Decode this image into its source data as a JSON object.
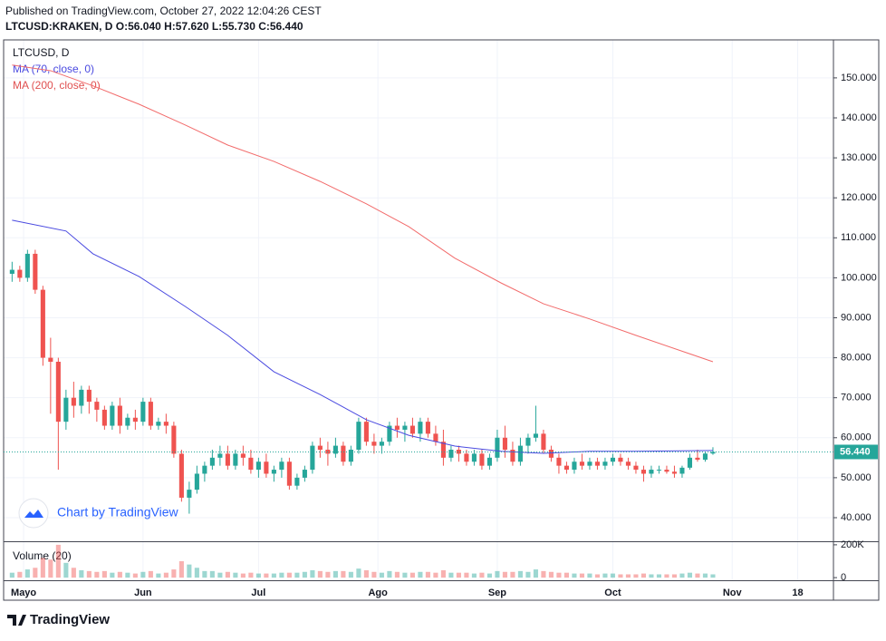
{
  "chart_data": {
    "type": "candlestick",
    "title": "Published on TradingView.com, October 27, 2022 12:04:26 CEST",
    "header": "LTCUSD:KRAKEN, D O:56.040 H:57.620 L:55.730 C:56.440",
    "legend": [
      "LTCUSD, D",
      "MA (70, close, 0)",
      "MA (200, close, 0)"
    ],
    "volume_label": "Volume (20)",
    "watermark": "Chart by TradingView",
    "footer": "TradingView",
    "up_color": "#26a69a",
    "down_color": "#ef5350",
    "xlim": [
      -5.2,
      210.3
    ],
    "xticks": [
      {
        "value": 0,
        "label": "Mayo"
      },
      {
        "value": 31,
        "label": "Jun"
      },
      {
        "value": 61,
        "label": "Jul"
      },
      {
        "value": 92,
        "label": "Ago"
      },
      {
        "value": 123,
        "label": "Sep"
      },
      {
        "value": 153,
        "label": "Oct"
      },
      {
        "value": 184,
        "label": "Nov"
      },
      {
        "value": 201,
        "label": "18"
      }
    ],
    "ylim": [
      34.1,
      159.5
    ],
    "yticks": [
      {
        "value": 40,
        "label": "40.000"
      },
      {
        "value": 50,
        "label": "50.000"
      },
      {
        "value": 60,
        "label": "60.000"
      },
      {
        "value": 70,
        "label": "70.000"
      },
      {
        "value": 80,
        "label": "80.000"
      },
      {
        "value": 90,
        "label": "90.000"
      },
      {
        "value": 100,
        "label": "100.000"
      },
      {
        "value": 110,
        "label": "110.000"
      },
      {
        "value": 120,
        "label": "120.000"
      },
      {
        "value": 130,
        "label": "130.000"
      },
      {
        "value": 140,
        "label": "140.000"
      },
      {
        "value": 150,
        "label": "150.000"
      }
    ],
    "vlim": [
      -16000,
      216000
    ],
    "vticks": [
      {
        "value": 0,
        "label": "0"
      },
      {
        "value": 200000,
        "label": "200K"
      }
    ],
    "last_price": {
      "value": 56.44,
      "label": "56.440"
    },
    "candles": [
      [
        -3,
        101,
        104,
        99,
        102,
        30000
      ],
      [
        -1,
        102,
        103,
        99,
        100,
        35000
      ],
      [
        1,
        100,
        107,
        99,
        106,
        50000
      ],
      [
        3,
        106,
        107,
        96,
        97,
        60000
      ],
      [
        5,
        97,
        98,
        78,
        80,
        120000
      ],
      [
        7,
        80,
        85,
        66,
        79,
        110000
      ],
      [
        9,
        79,
        80,
        52,
        64,
        200000
      ],
      [
        11,
        64,
        72,
        62,
        70,
        90000
      ],
      [
        13,
        70,
        74,
        65,
        68,
        60000
      ],
      [
        15,
        68,
        73,
        66,
        72,
        45000
      ],
      [
        17,
        72,
        73,
        66,
        69,
        40000
      ],
      [
        19,
        69,
        70,
        64,
        67,
        35000
      ],
      [
        21,
        67,
        68,
        62,
        63,
        40000
      ],
      [
        23,
        63,
        69,
        62,
        68,
        30000
      ],
      [
        25,
        68,
        70,
        61,
        63,
        35000
      ],
      [
        27,
        63,
        66,
        62,
        65,
        30000
      ],
      [
        29,
        65,
        67,
        62,
        64,
        25000
      ],
      [
        31,
        64,
        70,
        63,
        69,
        35000
      ],
      [
        33,
        69,
        70,
        62,
        63,
        40000
      ],
      [
        35,
        63,
        65,
        62,
        64,
        25000
      ],
      [
        37,
        64,
        66,
        61,
        63,
        30000
      ],
      [
        39,
        63,
        64,
        55,
        56,
        50000
      ],
      [
        41,
        56,
        57,
        44,
        45,
        100000
      ],
      [
        43,
        45,
        49,
        41,
        47,
        80000
      ],
      [
        45,
        47,
        53,
        46,
        51,
        60000
      ],
      [
        47,
        51,
        54,
        49,
        53,
        40000
      ],
      [
        49,
        53,
        57,
        52,
        55,
        40000
      ],
      [
        51,
        55,
        58,
        53,
        56,
        30000
      ],
      [
        53,
        56,
        58,
        52,
        53,
        35000
      ],
      [
        55,
        53,
        57,
        52,
        56,
        30000
      ],
      [
        57,
        56,
        58,
        53,
        55,
        25000
      ],
      [
        59,
        55,
        57,
        51,
        52,
        30000
      ],
      [
        61,
        52,
        55,
        50,
        54,
        25000
      ],
      [
        63,
        54,
        56,
        50,
        51,
        25000
      ],
      [
        65,
        51,
        53,
        49,
        52,
        25000
      ],
      [
        67,
        52,
        55,
        50,
        54,
        30000
      ],
      [
        69,
        54,
        55,
        47,
        48,
        30000
      ],
      [
        71,
        48,
        51,
        47,
        50,
        30000
      ],
      [
        73,
        50,
        53,
        49,
        52,
        35000
      ],
      [
        75,
        52,
        59,
        51,
        58,
        45000
      ],
      [
        77,
        58,
        60,
        55,
        57,
        40000
      ],
      [
        79,
        57,
        59,
        53,
        56,
        35000
      ],
      [
        81,
        56,
        60,
        55,
        58,
        40000
      ],
      [
        83,
        58,
        59,
        53,
        54,
        40000
      ],
      [
        85,
        54,
        58,
        53,
        57,
        35000
      ],
      [
        87,
        57,
        65,
        56,
        64,
        55000
      ],
      [
        89,
        64,
        65,
        58,
        59,
        45000
      ],
      [
        91,
        59,
        61,
        56,
        58,
        35000
      ],
      [
        93,
        58,
        60,
        56,
        59,
        30000
      ],
      [
        95,
        59,
        64,
        58,
        63,
        40000
      ],
      [
        97,
        63,
        65,
        60,
        62,
        35000
      ],
      [
        99,
        62,
        64,
        59,
        63,
        30000
      ],
      [
        101,
        63,
        65,
        60,
        61,
        30000
      ],
      [
        103,
        61,
        65,
        59,
        64,
        35000
      ],
      [
        105,
        64,
        65,
        60,
        61,
        35000
      ],
      [
        107,
        61,
        63,
        58,
        59,
        30000
      ],
      [
        109,
        59,
        62,
        53,
        55,
        45000
      ],
      [
        111,
        55,
        58,
        54,
        57,
        30000
      ],
      [
        113,
        57,
        58,
        54,
        56,
        30000
      ],
      [
        115,
        56,
        57,
        53,
        54,
        30000
      ],
      [
        117,
        54,
        57,
        53,
        56,
        25000
      ],
      [
        119,
        56,
        57,
        52,
        53,
        30000
      ],
      [
        121,
        53,
        56,
        52,
        55,
        25000
      ],
      [
        123,
        55,
        62,
        54,
        60,
        40000
      ],
      [
        125,
        60,
        63,
        55,
        57,
        35000
      ],
      [
        127,
        57,
        59,
        53,
        54,
        35000
      ],
      [
        129,
        54,
        60,
        53,
        58,
        40000
      ],
      [
        131,
        58,
        61,
        56,
        60,
        35000
      ],
      [
        133,
        60,
        68,
        59,
        61,
        50000
      ],
      [
        135,
        61,
        62,
        56,
        57,
        40000
      ],
      [
        137,
        57,
        58,
        54,
        55,
        35000
      ],
      [
        139,
        55,
        56,
        51,
        53,
        30000
      ],
      [
        141,
        53,
        54,
        51,
        52,
        30000
      ],
      [
        143,
        52,
        55,
        51,
        54,
        25000
      ],
      [
        145,
        54,
        56,
        52,
        53,
        25000
      ],
      [
        147,
        53,
        55,
        52,
        54,
        25000
      ],
      [
        149,
        54,
        55,
        52,
        53,
        20000
      ],
      [
        151,
        53,
        55,
        52,
        54,
        25000
      ],
      [
        153,
        54,
        56,
        53,
        55,
        25000
      ],
      [
        155,
        55,
        56,
        53,
        54,
        20000
      ],
      [
        157,
        54,
        55,
        52,
        53,
        20000
      ],
      [
        159,
        53,
        54,
        51,
        52,
        20000
      ],
      [
        161,
        52,
        53,
        49,
        51,
        25000
      ],
      [
        163,
        51,
        53,
        50,
        52,
        20000
      ],
      [
        165,
        52,
        53,
        51,
        52,
        20000
      ],
      [
        167,
        52,
        53,
        51,
        51.5,
        20000
      ],
      [
        169,
        51.5,
        53,
        50,
        51,
        20000
      ],
      [
        171,
        51,
        53,
        50,
        52.5,
        25000
      ],
      [
        173,
        52.5,
        56,
        52,
        55,
        30000
      ],
      [
        175,
        55,
        57,
        54,
        54.5,
        25000
      ],
      [
        177,
        54.5,
        56.5,
        54,
        56.04,
        25000
      ],
      [
        179,
        56.04,
        57.62,
        55.73,
        56.44,
        20000
      ]
    ],
    "series": [
      {
        "name": "MA (70, close, 0)",
        "color": "#4a4ae0",
        "x": [
          -3,
          11,
          18,
          30,
          42,
          53,
          65,
          77,
          89,
          100,
          112,
          124,
          135,
          147,
          159,
          179
        ],
        "values": [
          114.4,
          111.7,
          106,
          100.3,
          92.8,
          85.6,
          76.5,
          70.8,
          64.5,
          60.6,
          57.9,
          56.6,
          56.1,
          56.6,
          56.6,
          56.8
        ]
      },
      {
        "name": "MA (200, close, 0)",
        "color": "#f26b6b",
        "x": [
          -3,
          7,
          18,
          30,
          42,
          53,
          65,
          77,
          89,
          100,
          112,
          124,
          135,
          147,
          159,
          179
        ],
        "values": [
          153.2,
          151.8,
          148,
          143.4,
          138.2,
          133.2,
          129.1,
          124.1,
          118.5,
          112.8,
          104.9,
          98.7,
          93.5,
          89.7,
          85.6,
          79.0
        ]
      }
    ]
  }
}
